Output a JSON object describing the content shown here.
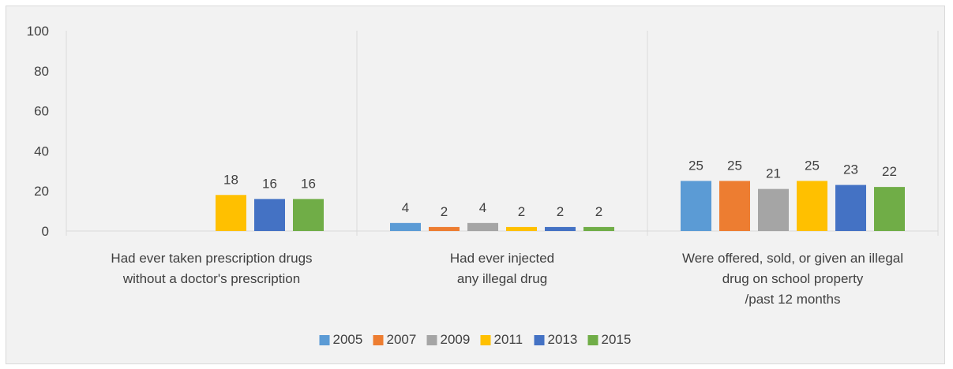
{
  "chart_data": {
    "type": "bar",
    "title": "",
    "xlabel": "",
    "ylabel": "",
    "ylim": [
      0,
      100
    ],
    "yticks": [
      0,
      20,
      40,
      60,
      80,
      100
    ],
    "grid": "vertical separators between categories",
    "legend_position": "bottom",
    "categories": [
      [
        "Had ever taken prescription drugs",
        "without a doctor's prescription"
      ],
      [
        "Had ever injected",
        "any illegal drug"
      ],
      [
        "Were offered, sold, or given an illegal",
        "drug on school property",
        "/past 12 months"
      ]
    ],
    "series": [
      {
        "name": "2005",
        "color": "#5b9bd5",
        "values": [
          null,
          4,
          25
        ]
      },
      {
        "name": "2007",
        "color": "#ed7d31",
        "values": [
          null,
          2,
          25
        ]
      },
      {
        "name": "2009",
        "color": "#a5a5a5",
        "values": [
          null,
          4,
          21
        ]
      },
      {
        "name": "2011",
        "color": "#ffc000",
        "values": [
          18,
          2,
          25
        ]
      },
      {
        "name": "2013",
        "color": "#4472c4",
        "values": [
          16,
          2,
          23
        ]
      },
      {
        "name": "2015",
        "color": "#70ad47",
        "values": [
          16,
          2,
          22
        ]
      }
    ]
  }
}
